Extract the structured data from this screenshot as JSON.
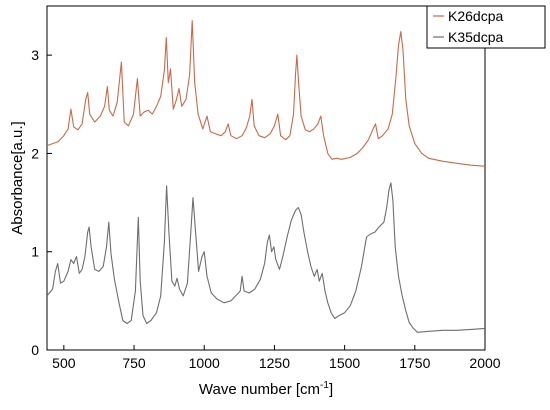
{
  "chart_data": {
    "type": "line",
    "title": "",
    "xlabel": "Wave number [cm",
    "xlabel_sup": "-1",
    "xlabel_suffix": "]",
    "ylabel": "Absorbance[a.u.]",
    "xlim": [
      440,
      2000
    ],
    "ylim": [
      0,
      3.5
    ],
    "xticks": [
      500,
      750,
      1000,
      1250,
      1500,
      1750,
      2000
    ],
    "yticks": [
      0,
      1,
      2,
      3
    ],
    "grid": false,
    "legend_position": "top-right",
    "series": [
      {
        "name": "K26dcpa",
        "color": "#c86a4a",
        "points": [
          [
            440,
            2.08
          ],
          [
            480,
            2.12
          ],
          [
            500,
            2.18
          ],
          [
            515,
            2.25
          ],
          [
            525,
            2.45
          ],
          [
            535,
            2.27
          ],
          [
            550,
            2.24
          ],
          [
            565,
            2.3
          ],
          [
            578,
            2.55
          ],
          [
            585,
            2.62
          ],
          [
            592,
            2.4
          ],
          [
            610,
            2.32
          ],
          [
            630,
            2.38
          ],
          [
            645,
            2.48
          ],
          [
            655,
            2.68
          ],
          [
            662,
            2.44
          ],
          [
            675,
            2.38
          ],
          [
            690,
            2.52
          ],
          [
            705,
            2.93
          ],
          [
            715,
            2.32
          ],
          [
            730,
            2.28
          ],
          [
            748,
            2.4
          ],
          [
            762,
            2.76
          ],
          [
            772,
            2.38
          ],
          [
            785,
            2.42
          ],
          [
            800,
            2.44
          ],
          [
            815,
            2.4
          ],
          [
            830,
            2.48
          ],
          [
            845,
            2.58
          ],
          [
            858,
            2.85
          ],
          [
            865,
            3.18
          ],
          [
            872,
            2.72
          ],
          [
            880,
            2.86
          ],
          [
            890,
            2.45
          ],
          [
            900,
            2.54
          ],
          [
            910,
            2.66
          ],
          [
            920,
            2.48
          ],
          [
            935,
            2.55
          ],
          [
            948,
            2.8
          ],
          [
            957,
            3.35
          ],
          [
            966,
            2.72
          ],
          [
            978,
            2.4
          ],
          [
            995,
            2.25
          ],
          [
            1010,
            2.38
          ],
          [
            1022,
            2.22
          ],
          [
            1040,
            2.2
          ],
          [
            1060,
            2.18
          ],
          [
            1075,
            2.22
          ],
          [
            1085,
            2.3
          ],
          [
            1095,
            2.18
          ],
          [
            1115,
            2.15
          ],
          [
            1135,
            2.18
          ],
          [
            1150,
            2.26
          ],
          [
            1162,
            2.38
          ],
          [
            1170,
            2.55
          ],
          [
            1178,
            2.28
          ],
          [
            1195,
            2.18
          ],
          [
            1215,
            2.16
          ],
          [
            1235,
            2.2
          ],
          [
            1250,
            2.28
          ],
          [
            1262,
            2.4
          ],
          [
            1272,
            2.18
          ],
          [
            1290,
            2.14
          ],
          [
            1305,
            2.18
          ],
          [
            1318,
            2.4
          ],
          [
            1325,
            2.8
          ],
          [
            1330,
            3.0
          ],
          [
            1336,
            2.72
          ],
          [
            1345,
            2.38
          ],
          [
            1360,
            2.24
          ],
          [
            1375,
            2.22
          ],
          [
            1390,
            2.25
          ],
          [
            1405,
            2.3
          ],
          [
            1415,
            2.38
          ],
          [
            1425,
            2.18
          ],
          [
            1440,
            2.0
          ],
          [
            1455,
            1.94
          ],
          [
            1470,
            1.95
          ],
          [
            1490,
            1.94
          ],
          [
            1520,
            1.96
          ],
          [
            1545,
            2.0
          ],
          [
            1565,
            2.06
          ],
          [
            1585,
            2.14
          ],
          [
            1600,
            2.24
          ],
          [
            1610,
            2.3
          ],
          [
            1620,
            2.15
          ],
          [
            1635,
            2.18
          ],
          [
            1655,
            2.25
          ],
          [
            1670,
            2.4
          ],
          [
            1682,
            2.75
          ],
          [
            1692,
            3.1
          ],
          [
            1700,
            3.24
          ],
          [
            1708,
            3.05
          ],
          [
            1718,
            2.55
          ],
          [
            1730,
            2.28
          ],
          [
            1750,
            2.1
          ],
          [
            1775,
            2.0
          ],
          [
            1800,
            1.95
          ],
          [
            1850,
            1.92
          ],
          [
            1900,
            1.9
          ],
          [
            1950,
            1.88
          ],
          [
            2000,
            1.87
          ]
        ]
      },
      {
        "name": "K35dcpa",
        "color": "#6e6e6e",
        "points": [
          [
            440,
            0.55
          ],
          [
            460,
            0.62
          ],
          [
            470,
            0.8
          ],
          [
            478,
            0.88
          ],
          [
            488,
            0.68
          ],
          [
            500,
            0.7
          ],
          [
            515,
            0.8
          ],
          [
            525,
            0.92
          ],
          [
            535,
            0.88
          ],
          [
            545,
            0.95
          ],
          [
            555,
            0.78
          ],
          [
            565,
            0.82
          ],
          [
            575,
            0.95
          ],
          [
            585,
            1.2
          ],
          [
            590,
            1.25
          ],
          [
            597,
            1.05
          ],
          [
            610,
            0.82
          ],
          [
            625,
            0.8
          ],
          [
            640,
            0.85
          ],
          [
            652,
            1.05
          ],
          [
            660,
            1.3
          ],
          [
            668,
            0.98
          ],
          [
            680,
            0.72
          ],
          [
            695,
            0.5
          ],
          [
            710,
            0.3
          ],
          [
            725,
            0.27
          ],
          [
            740,
            0.3
          ],
          [
            755,
            0.6
          ],
          [
            765,
            1.35
          ],
          [
            772,
            0.7
          ],
          [
            782,
            0.35
          ],
          [
            795,
            0.27
          ],
          [
            810,
            0.3
          ],
          [
            830,
            0.38
          ],
          [
            845,
            0.55
          ],
          [
            858,
            1.1
          ],
          [
            866,
            1.67
          ],
          [
            874,
            1.2
          ],
          [
            885,
            0.7
          ],
          [
            895,
            0.65
          ],
          [
            903,
            0.73
          ],
          [
            912,
            0.62
          ],
          [
            925,
            0.55
          ],
          [
            940,
            0.68
          ],
          [
            952,
            1.2
          ],
          [
            960,
            1.55
          ],
          [
            968,
            1.25
          ],
          [
            980,
            0.8
          ],
          [
            992,
            0.95
          ],
          [
            1000,
            1.0
          ],
          [
            1010,
            0.75
          ],
          [
            1025,
            0.58
          ],
          [
            1045,
            0.52
          ],
          [
            1070,
            0.48
          ],
          [
            1095,
            0.5
          ],
          [
            1115,
            0.56
          ],
          [
            1128,
            0.6
          ],
          [
            1135,
            0.75
          ],
          [
            1142,
            0.6
          ],
          [
            1160,
            0.58
          ],
          [
            1180,
            0.62
          ],
          [
            1200,
            0.72
          ],
          [
            1215,
            0.88
          ],
          [
            1225,
            1.1
          ],
          [
            1232,
            1.17
          ],
          [
            1240,
            1.0
          ],
          [
            1248,
            1.05
          ],
          [
            1255,
            0.92
          ],
          [
            1268,
            0.82
          ],
          [
            1280,
            0.95
          ],
          [
            1295,
            1.15
          ],
          [
            1310,
            1.32
          ],
          [
            1325,
            1.42
          ],
          [
            1335,
            1.45
          ],
          [
            1345,
            1.38
          ],
          [
            1355,
            1.2
          ],
          [
            1368,
            1.0
          ],
          [
            1380,
            0.85
          ],
          [
            1392,
            0.75
          ],
          [
            1402,
            0.82
          ],
          [
            1410,
            0.7
          ],
          [
            1420,
            0.78
          ],
          [
            1430,
            0.6
          ],
          [
            1440,
            0.48
          ],
          [
            1452,
            0.38
          ],
          [
            1465,
            0.32
          ],
          [
            1480,
            0.35
          ],
          [
            1500,
            0.38
          ],
          [
            1520,
            0.45
          ],
          [
            1540,
            0.6
          ],
          [
            1560,
            0.85
          ],
          [
            1578,
            1.15
          ],
          [
            1592,
            1.18
          ],
          [
            1608,
            1.2
          ],
          [
            1622,
            1.25
          ],
          [
            1640,
            1.3
          ],
          [
            1650,
            1.45
          ],
          [
            1658,
            1.63
          ],
          [
            1665,
            1.7
          ],
          [
            1672,
            1.52
          ],
          [
            1680,
            1.05
          ],
          [
            1692,
            0.75
          ],
          [
            1705,
            0.55
          ],
          [
            1718,
            0.4
          ],
          [
            1730,
            0.28
          ],
          [
            1745,
            0.22
          ],
          [
            1760,
            0.18
          ],
          [
            1800,
            0.19
          ],
          [
            1850,
            0.2
          ],
          [
            1900,
            0.2
          ],
          [
            1950,
            0.21
          ],
          [
            2000,
            0.22
          ]
        ]
      }
    ]
  }
}
